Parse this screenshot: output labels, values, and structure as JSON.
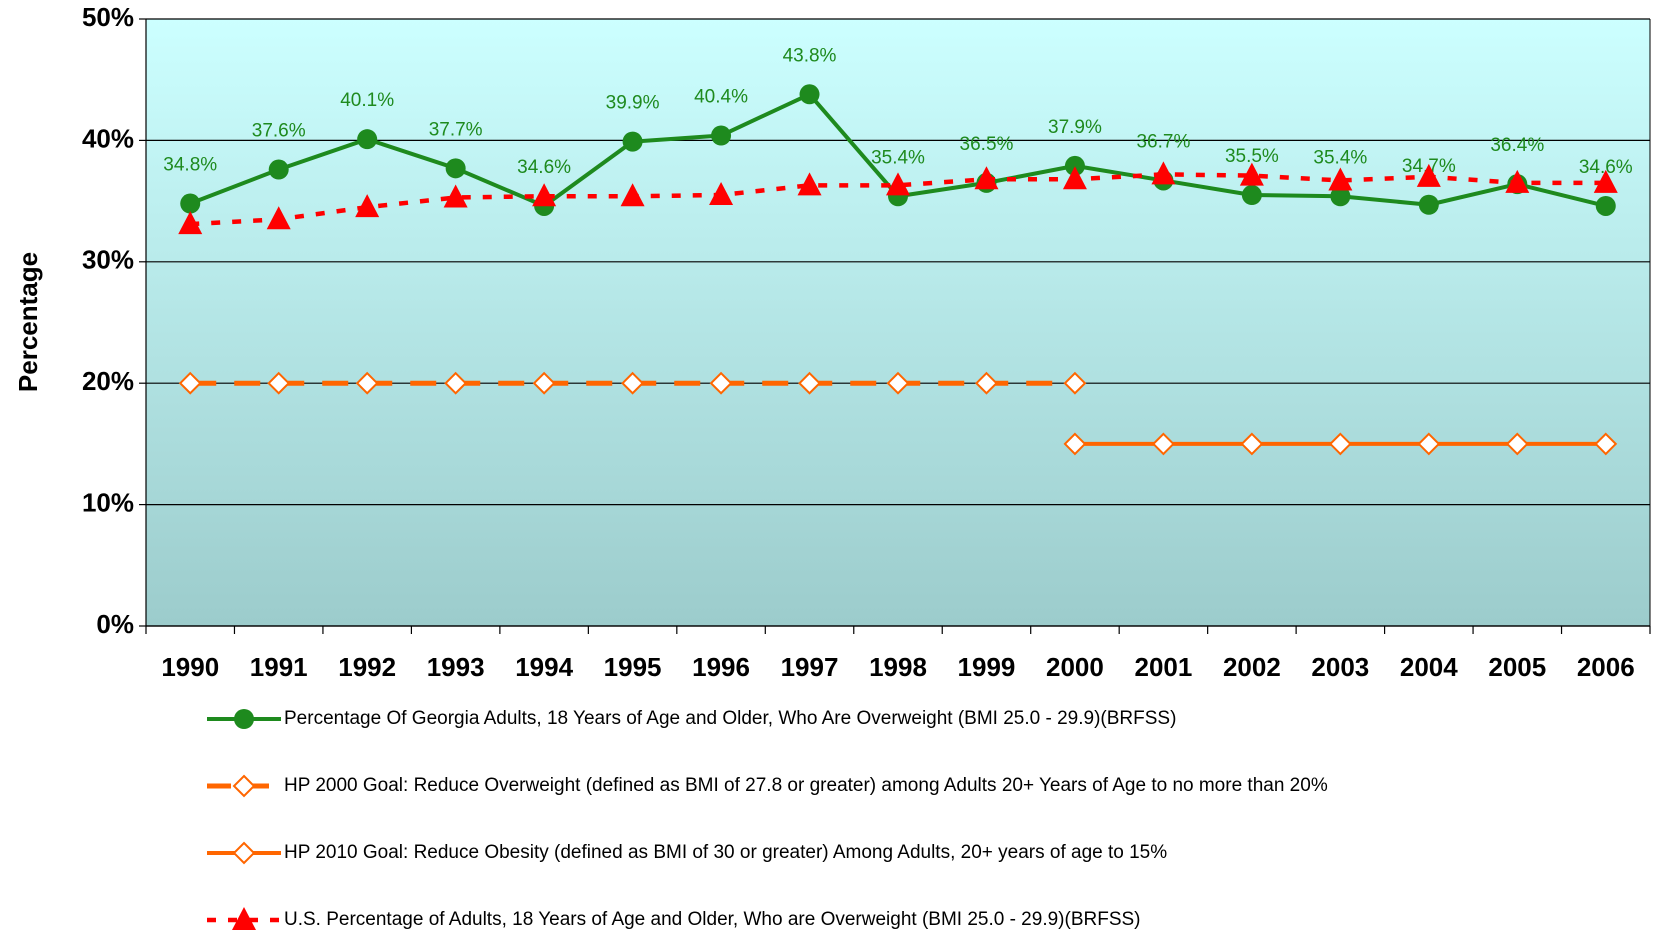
{
  "chart_data": {
    "type": "line",
    "y_label": "Percentage",
    "categories": [
      "1990",
      "1991",
      "1992",
      "1993",
      "1994",
      "1995",
      "1996",
      "1997",
      "1998",
      "1999",
      "2000",
      "2001",
      "2002",
      "2003",
      "2004",
      "2005",
      "2006"
    ],
    "series": [
      {
        "name": "Percentage Of Georgia Adults, 18 Years of Age and Older, Who Are Overweight (BMI 25.0 - 29.9)(BRFSS)",
        "color": "#1e8a1e",
        "marker": "circle",
        "dash": "solid",
        "values": [
          34.8,
          37.6,
          40.1,
          37.7,
          34.6,
          39.9,
          40.4,
          43.8,
          35.4,
          36.5,
          37.9,
          36.7,
          35.5,
          35.4,
          34.7,
          36.4,
          34.6
        ],
        "value_labels": [
          "34.8%",
          "37.6%",
          "40.1%",
          "37.7%",
          "34.6%",
          "39.9%",
          "40.4%",
          "43.8%",
          "35.4%",
          "36.5%",
          "37.9%",
          "36.7%",
          "35.5%",
          "35.4%",
          "34.7%",
          "36.4%",
          "34.6%"
        ]
      },
      {
        "name": "HP 2000 Goal: Reduce Overweight (defined as BMI of 27.8 or greater) among Adults 20+ Years of Age to no more than 20%",
        "color": "#ff6600",
        "marker": "diamond",
        "dash": "dashed",
        "values": [
          20,
          20,
          20,
          20,
          20,
          20,
          20,
          20,
          20,
          20,
          20,
          null,
          null,
          null,
          null,
          null,
          null
        ]
      },
      {
        "name": "HP 2010 Goal:  Reduce Obesity (defined as BMI of 30 or greater) Among Adults, 20+ years of age to 15%",
        "color": "#ff6600",
        "marker": "diamond",
        "dash": "solid",
        "values": [
          null,
          null,
          null,
          null,
          null,
          null,
          null,
          null,
          null,
          null,
          15,
          15,
          15,
          15,
          15,
          15,
          15
        ]
      },
      {
        "name": "U.S. Percentage of Adults, 18 Years of Age and Older, Who are Overweight (BMI 25.0 - 29.9)(BRFSS)",
        "color": "#ff0000",
        "marker": "triangle",
        "dash": "dotted",
        "values": [
          33.1,
          33.5,
          34.5,
          35.3,
          35.4,
          35.4,
          35.5,
          36.3,
          36.3,
          36.8,
          36.8,
          37.2,
          37.1,
          36.7,
          37.0,
          36.5,
          36.5
        ]
      }
    ],
    "ylim": [
      0,
      50
    ],
    "yticks": [
      {
        "value": 0,
        "label": "0%"
      },
      {
        "value": 10,
        "label": "10%"
      },
      {
        "value": 20,
        "label": "20%"
      },
      {
        "value": 30,
        "label": "30%"
      },
      {
        "value": 40,
        "label": "40%"
      },
      {
        "value": 50,
        "label": "50%"
      }
    ],
    "grid": true,
    "legend": "bottom"
  }
}
